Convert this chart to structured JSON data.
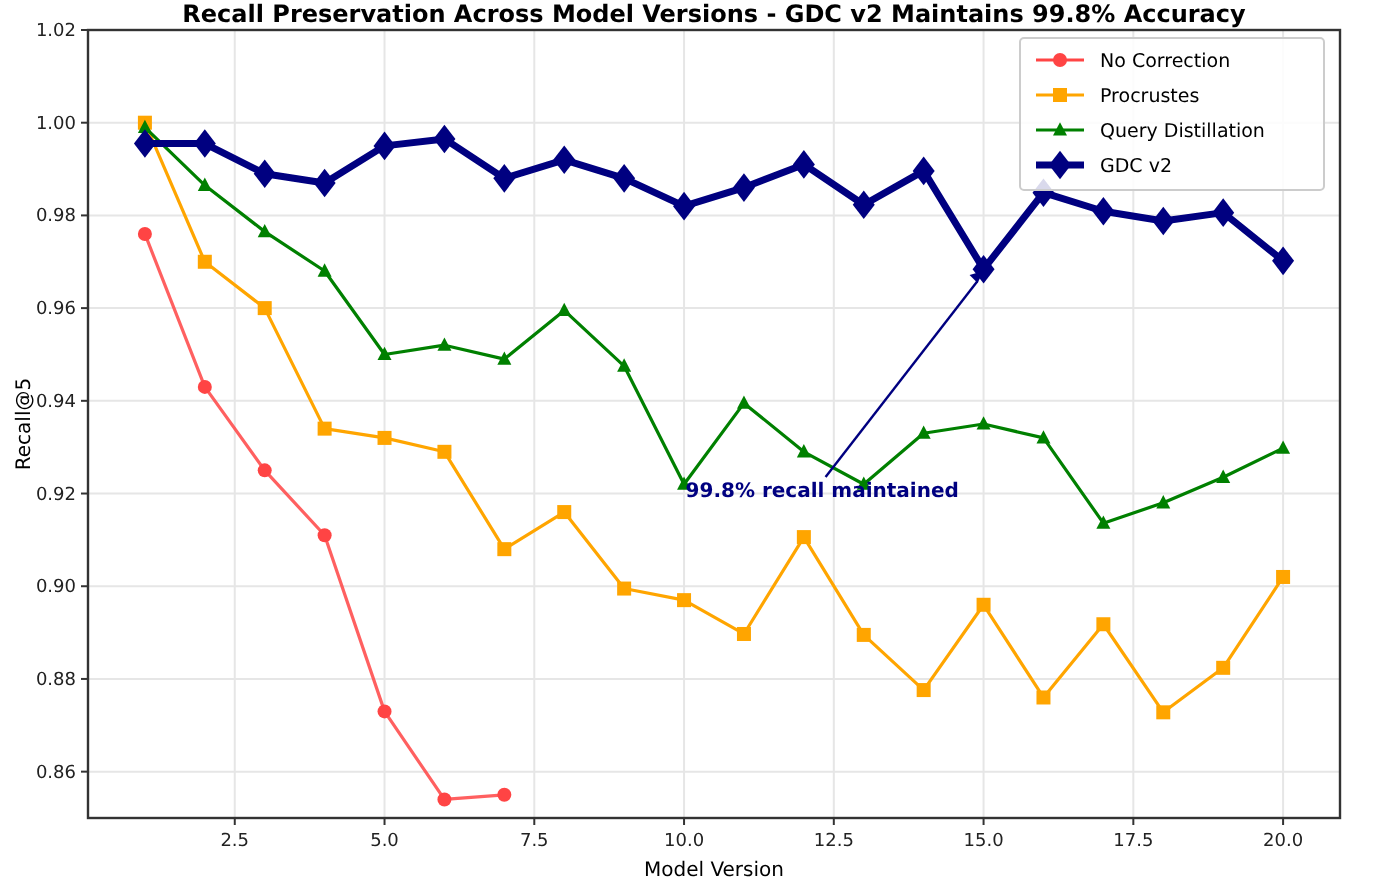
{
  "chart_data": {
    "type": "line",
    "title": "Recall Preservation Across Model Versions - GDC v2 Maintains 99.8% Accuracy",
    "xlabel": "Model Version",
    "ylabel": "Recall@5",
    "x": [
      1,
      2,
      3,
      4,
      5,
      6,
      7,
      8,
      9,
      10,
      11,
      12,
      13,
      14,
      15,
      16,
      17,
      18,
      19,
      20
    ],
    "series": [
      {
        "name": "No Correction",
        "color": "#ff4444",
        "marker": "circle",
        "values": [
          0.976,
          0.943,
          0.925,
          0.911,
          0.873,
          0.854,
          0.855,
          null,
          null,
          null,
          null,
          null,
          null,
          null,
          null,
          null,
          null,
          null,
          null,
          null
        ]
      },
      {
        "name": "Procrustes",
        "color": "#ffa500",
        "marker": "square",
        "values": [
          1.0,
          0.97,
          0.96,
          0.934,
          0.932,
          0.929,
          0.908,
          0.916,
          0.8995,
          0.897,
          0.8897,
          0.9106,
          0.8895,
          0.8776,
          0.896,
          0.876,
          0.8918,
          0.8728,
          0.8824,
          0.902
        ]
      },
      {
        "name": "Query Distillation",
        "color": "#008000",
        "marker": "triangle",
        "values": [
          0.999,
          0.9865,
          0.9765,
          0.968,
          0.95,
          0.952,
          0.949,
          0.9595,
          0.9475,
          0.922,
          0.9395,
          0.929,
          0.922,
          0.933,
          0.935,
          0.932,
          0.9136,
          0.918,
          0.9235,
          0.9298
        ]
      },
      {
        "name": "GDC v2",
        "color": "#000080",
        "marker": "diamond",
        "values": [
          0.9955,
          0.9955,
          0.989,
          0.987,
          0.995,
          0.9965,
          0.988,
          0.992,
          0.988,
          0.982,
          0.986,
          0.991,
          0.9823,
          0.9896,
          0.9684,
          0.9849,
          0.9809,
          0.9788,
          0.9806,
          0.9702
        ]
      }
    ],
    "xlim": [
      0.05,
      20.95
    ],
    "ylim": [
      0.85,
      1.02
    ],
    "xticks": [
      2.5,
      {
        "value": 5,
        "label": "5.0"
      },
      7.5,
      {
        "value": 10,
        "label": "10.0"
      },
      12.5,
      {
        "value": 15,
        "label": "15.0"
      },
      17.5,
      {
        "value": 20,
        "label": "20.0"
      }
    ],
    "yticks": [
      {
        "value": 0.86,
        "label": "0.86"
      },
      {
        "value": 0.88,
        "label": "0.88"
      },
      {
        "value": 0.9,
        "label": "0.90"
      },
      {
        "value": 0.92,
        "label": "0.92"
      },
      {
        "value": 0.94,
        "label": "0.94"
      },
      {
        "value": 0.96,
        "label": "0.96"
      },
      {
        "value": 0.98,
        "label": "0.98"
      },
      {
        "value": 1,
        "label": "1.00"
      },
      {
        "value": 1.02,
        "label": "1.02"
      }
    ],
    "grid": true,
    "legend": "top right",
    "line_style": "solid",
    "annotations": [
      {
        "text": "99.8% recall maintained",
        "x": 15,
        "y": 0.968
      }
    ]
  }
}
